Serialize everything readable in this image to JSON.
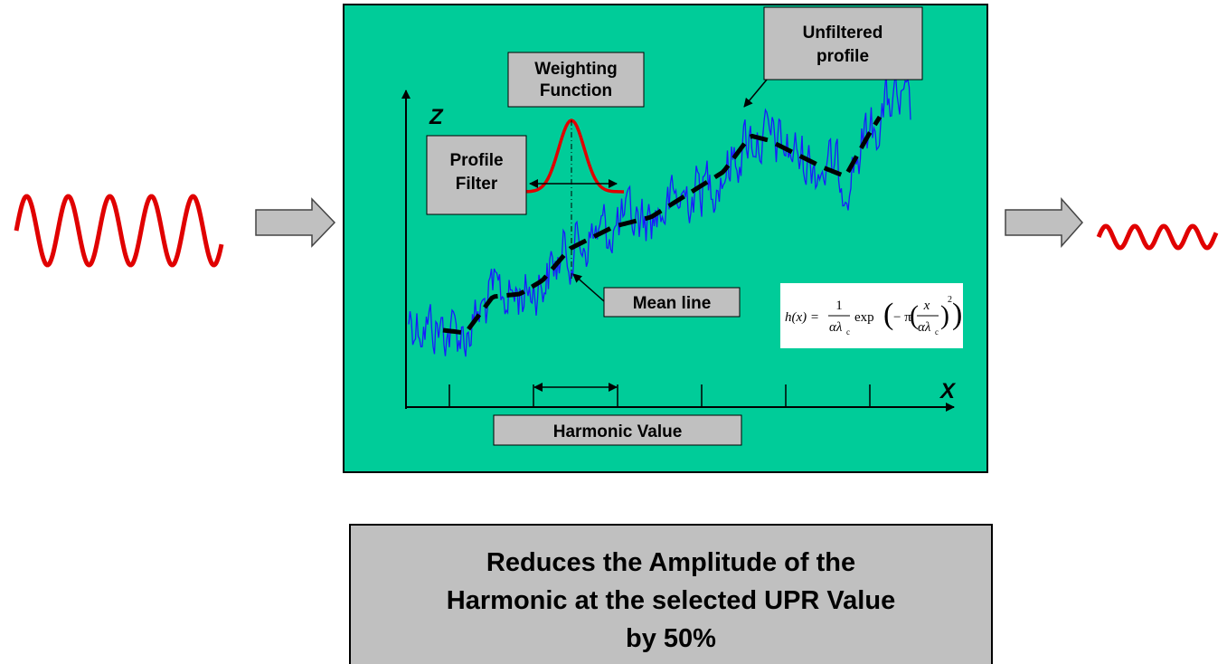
{
  "labels": {
    "weighting_function": [
      "Weighting",
      "Function"
    ],
    "unfiltered_profile": [
      "Unfiltered",
      "profile"
    ],
    "profile_filter": [
      "Profile",
      "Filter"
    ],
    "mean_line": "Mean line",
    "harmonic_value": "Harmonic Value",
    "z_axis": "Z",
    "x_axis": "X"
  },
  "formula": {
    "lhs": "h(x) =",
    "num1": "1",
    "den1": "αλ",
    "sub1": "c",
    "func": "exp",
    "minus_pi": "− π",
    "num2": "x",
    "den2": "αλ",
    "sub2": "c",
    "power": "2"
  },
  "caption": [
    "Reduces the Amplitude of the",
    "Harmonic at the selected UPR Value",
    "by 50%"
  ]
}
